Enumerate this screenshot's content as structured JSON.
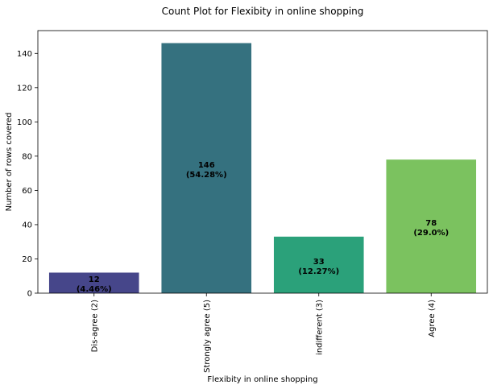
{
  "chart_data": {
    "type": "bar",
    "title": "Count Plot for Flexibity in online shopping",
    "xlabel": "Flexibity in online shopping",
    "ylabel": "Number of rows covered",
    "categories": [
      "Dis-agree (2)",
      "Strongly agree (5)",
      "indifferent (3)",
      "Agree (4)"
    ],
    "values": [
      12,
      146,
      33,
      78
    ],
    "bar_labels": [
      [
        "12",
        "(4.46%)"
      ],
      [
        "146",
        "(54.28%)"
      ],
      [
        "33",
        "(12.27%)"
      ],
      [
        "78",
        "(29.0%)"
      ]
    ],
    "colors": [
      "#46468a",
      "#35717f",
      "#2ba17a",
      "#7bc25f"
    ],
    "ylim": [
      0,
      153.3
    ],
    "yticks": [
      0,
      20,
      40,
      60,
      80,
      100,
      120,
      140
    ],
    "grid": false,
    "legend": "none"
  }
}
